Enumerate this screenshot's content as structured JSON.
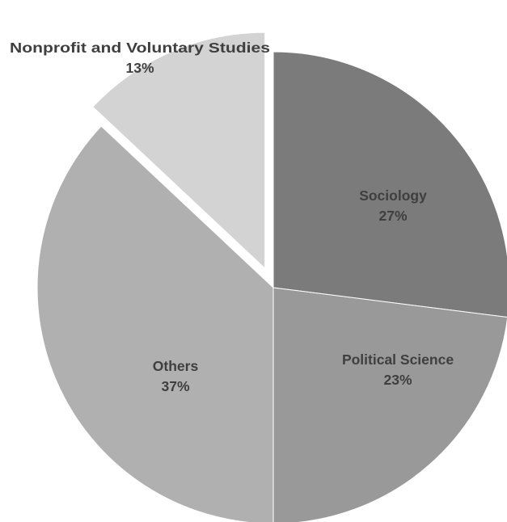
{
  "chart_data": {
    "type": "pie",
    "title": "",
    "legend": "none",
    "slices": [
      {
        "name": "Sociology",
        "value": 27,
        "value_label": "27%",
        "color": "#7b7b7b",
        "exploded": false
      },
      {
        "name": "Political Science",
        "value": 23,
        "value_label": "23%",
        "color": "#999999",
        "exploded": false
      },
      {
        "name": "Others",
        "value": 37,
        "value_label": "37%",
        "color": "#b0b0b0",
        "exploded": false
      },
      {
        "name": "Nonprofit and Voluntary Studies",
        "value": 13,
        "value_label": "13%",
        "color": "#d3d3d3",
        "exploded": true
      }
    ]
  }
}
